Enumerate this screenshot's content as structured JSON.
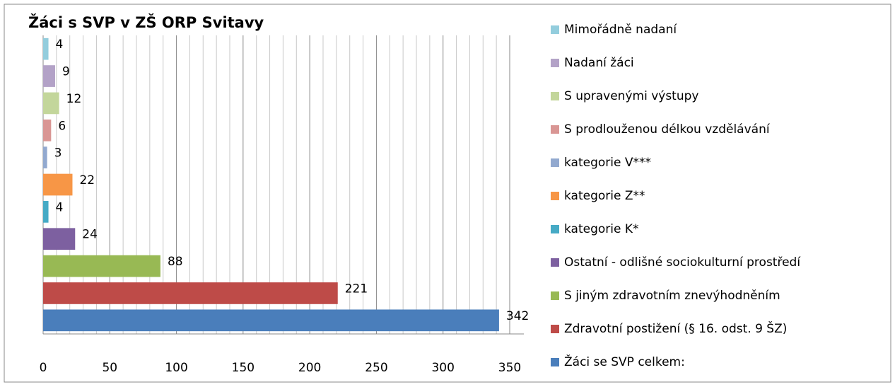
{
  "chart_data": {
    "type": "barh",
    "title": "Žáci s SVP v ZŠ ORP Svitavy",
    "categories": [
      "Žáci se SVP celkem:",
      "Zdravotní postižení (§ 16. odst. 9 ŠZ)",
      "S jiným zdravotním znevýhodněním",
      "Ostatní - odlišné sociokulturní prostředí",
      "kategorie K*",
      "kategorie Z**",
      "kategorie V***",
      "S prodlouženou délkou vzdělávání",
      "S upravenými výstupy",
      "Nadaní žáci",
      "Mimořádně nadaní"
    ],
    "values": [
      342,
      221,
      88,
      24,
      4,
      22,
      3,
      6,
      12,
      9,
      4
    ],
    "colors": [
      "#4a7ebb",
      "#be4b48",
      "#98b954",
      "#7d60a0",
      "#46aac5",
      "#f79646",
      "#92a9cf",
      "#d99694",
      "#c3d69b",
      "#b3a2c7",
      "#93cddd"
    ],
    "xlim": [
      0,
      350
    ],
    "xticks": [
      0,
      50,
      100,
      150,
      200,
      250,
      300,
      350
    ],
    "xminorticks": [
      10,
      20,
      30,
      40,
      60,
      70,
      80,
      90,
      110,
      120,
      130,
      140,
      160,
      170,
      180,
      190,
      210,
      220,
      230,
      240,
      260,
      270,
      280,
      290,
      310,
      320,
      330,
      340
    ],
    "grid": true,
    "legend": "right"
  }
}
